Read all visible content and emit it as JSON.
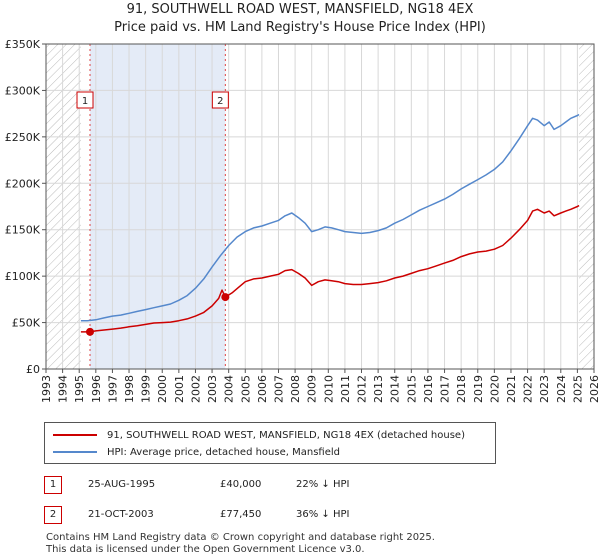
{
  "title_line1": "91, SOUTHWELL ROAD WEST, MANSFIELD, NG18 4EX",
  "title_line2": "Price paid vs. HM Land Registry's House Price Index (HPI)",
  "chart_data": {
    "type": "line",
    "xlim": [
      1993,
      2026
    ],
    "ylim": [
      0,
      350000
    ],
    "y_ticks": [
      0,
      50000,
      100000,
      150000,
      200000,
      250000,
      300000,
      350000
    ],
    "y_tick_labels": [
      "£0",
      "£50K",
      "£100K",
      "£150K",
      "£200K",
      "£250K",
      "£300K",
      "£350K"
    ],
    "x_ticks": [
      1993,
      1994,
      1995,
      1996,
      1997,
      1998,
      1999,
      2000,
      2001,
      2002,
      2003,
      2004,
      2005,
      2006,
      2007,
      2008,
      2009,
      2010,
      2011,
      2012,
      2013,
      2014,
      2015,
      2016,
      2017,
      2018,
      2019,
      2020,
      2021,
      2022,
      2023,
      2024,
      2025,
      2026
    ],
    "x_tick_labels": [
      "1993",
      "1994",
      "1995",
      "1996",
      "1997",
      "1998",
      "1999",
      "2000",
      "2001",
      "2002",
      "2003",
      "2004",
      "2005",
      "2006",
      "2007",
      "2008",
      "2009",
      "2010",
      "2011",
      "2012",
      "2013",
      "2014",
      "2015",
      "2016",
      "2017",
      "2018",
      "2019",
      "2020",
      "2021",
      "2022",
      "2023",
      "2024",
      "2025",
      "2026"
    ],
    "grid": true,
    "hatched_ranges": [
      [
        1993,
        1995.1
      ],
      [
        2025.1,
        2026
      ]
    ],
    "shaded_range": [
      1995.65,
      2003.8
    ],
    "series": [
      {
        "name": "91, SOUTHWELL ROAD WEST, MANSFIELD, NG18 4EX (detached house)",
        "color": "#cc0000",
        "x": [
          1995.1,
          1995.65,
          1996,
          1996.5,
          1997,
          1997.5,
          1998,
          1998.5,
          1999,
          1999.5,
          2000,
          2000.5,
          2001,
          2001.5,
          2002,
          2002.5,
          2003,
          2003.4,
          2003.6,
          2003.8,
          2004.2,
          2004.6,
          2005,
          2005.5,
          2006,
          2006.5,
          2007,
          2007.4,
          2007.8,
          2008.2,
          2008.6,
          2009,
          2009.4,
          2009.8,
          2010.2,
          2010.6,
          2011,
          2011.5,
          2012,
          2012.5,
          2013,
          2013.5,
          2014,
          2014.5,
          2015,
          2015.5,
          2016,
          2016.5,
          2017,
          2017.5,
          2018,
          2018.5,
          2019,
          2019.5,
          2020,
          2020.5,
          2021,
          2021.5,
          2022,
          2022.3,
          2022.6,
          2023,
          2023.3,
          2023.6,
          2024,
          2024.3,
          2024.6,
          2025,
          2025.1
        ],
        "y": [
          40000,
          40000,
          41000,
          42000,
          43000,
          44000,
          45500,
          46500,
          48000,
          49500,
          50000,
          50500,
          52000,
          54000,
          57000,
          61000,
          68000,
          76000,
          85000,
          77450,
          82000,
          88000,
          94000,
          97000,
          98000,
          100000,
          102000,
          106000,
          107000,
          103000,
          98000,
          90000,
          94000,
          96000,
          95000,
          94000,
          92000,
          91000,
          91000,
          92000,
          93000,
          95000,
          98000,
          100000,
          103000,
          106000,
          108000,
          111000,
          114000,
          117000,
          121000,
          124000,
          126000,
          127000,
          129000,
          133000,
          141000,
          150000,
          160000,
          170000,
          172000,
          168000,
          170000,
          165000,
          168000,
          170000,
          172000,
          175000,
          176000
        ]
      },
      {
        "name": "HPI: Average price, detached house, Mansfield",
        "color": "#5588cc",
        "x": [
          1995.1,
          1995.5,
          1996,
          1996.5,
          1997,
          1997.5,
          1998,
          1998.5,
          1999,
          1999.5,
          2000,
          2000.5,
          2001,
          2001.5,
          2002,
          2002.5,
          2003,
          2003.5,
          2004,
          2004.5,
          2005,
          2005.5,
          2006,
          2006.5,
          2007,
          2007.4,
          2007.8,
          2008.2,
          2008.6,
          2009,
          2009.4,
          2009.8,
          2010.2,
          2010.6,
          2011,
          2011.5,
          2012,
          2012.5,
          2013,
          2013.5,
          2014,
          2014.5,
          2015,
          2015.5,
          2016,
          2016.5,
          2017,
          2017.5,
          2018,
          2018.5,
          2019,
          2019.5,
          2020,
          2020.5,
          2021,
          2021.5,
          2022,
          2022.3,
          2022.6,
          2023,
          2023.3,
          2023.6,
          2024,
          2024.3,
          2024.6,
          2025,
          2025.1
        ],
        "y": [
          52000,
          52000,
          53000,
          55000,
          57000,
          58000,
          60000,
          62000,
          64000,
          66000,
          68000,
          70000,
          74000,
          79000,
          87000,
          97000,
          110000,
          122000,
          133000,
          142000,
          148000,
          152000,
          154000,
          157000,
          160000,
          165000,
          168000,
          163000,
          157000,
          148000,
          150000,
          153000,
          152000,
          150000,
          148000,
          147000,
          146000,
          147000,
          149000,
          152000,
          157000,
          161000,
          166000,
          171000,
          175000,
          179000,
          183000,
          188000,
          194000,
          199000,
          204000,
          209000,
          215000,
          223000,
          235000,
          248000,
          262000,
          270000,
          268000,
          262000,
          266000,
          258000,
          262000,
          266000,
          270000,
          273000,
          274000
        ]
      }
    ],
    "markers": [
      {
        "label": "1",
        "x": 1995.65,
        "y": 40000
      },
      {
        "label": "2",
        "x": 2003.8,
        "y": 77450
      }
    ]
  },
  "transactions": [
    {
      "num": "1",
      "date": "25-AUG-1995",
      "price": "£40,000",
      "hpi": "22% ↓ HPI"
    },
    {
      "num": "2",
      "date": "21-OCT-2003",
      "price": "£77,450",
      "hpi": "36% ↓ HPI"
    }
  ],
  "footer_line1": "Contains HM Land Registry data © Crown copyright and database right 2025.",
  "footer_line2": "This data is licensed under the Open Government Licence v3.0."
}
